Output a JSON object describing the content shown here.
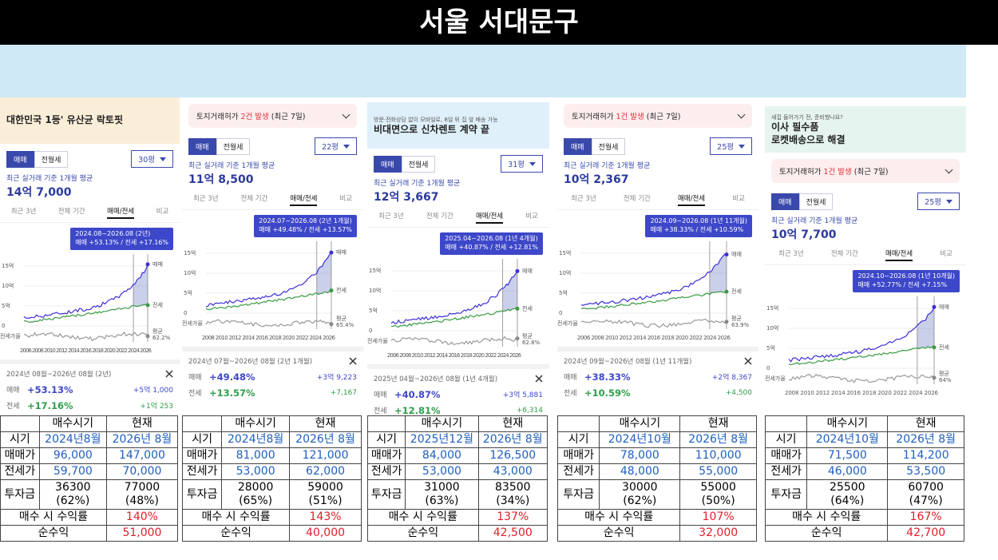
{
  "header": {
    "title": "서울 서대문구"
  },
  "panels": [
    {
      "ad": {
        "title": [
          "대한민국 1등' 유산균 락토핏"
        ]
      },
      "deal_tabs": [
        "매매",
        "전월세"
      ],
      "size": "30평",
      "avg_label": "최근 실거래 기준 1개월 평균",
      "avg_price": "14억 7,000",
      "period_tabs": [
        "최근 3년",
        "전체 기간",
        "매매/전세",
        "비교"
      ],
      "tooltip": [
        "2024.08~2026.08 (2년)",
        "매매 +53.13%  /  전세 +17.16%"
      ],
      "chart": {
        "y_labels": [
          "15억",
          "10억",
          "5억",
          "0"
        ],
        "ratio_axis": "전세가율",
        "x_labels": "2006 2008 2010 2012 2014 2016 2018 2020 2022 2024 2026",
        "line_labels": [
          "매매",
          "전세"
        ],
        "ratio_label": [
          "평균",
          "62.2%"
        ]
      },
      "summary": {
        "period": "2024년 08월~2026년 08월 (2년)",
        "rows": [
          {
            "label": "매매",
            "change": "+53.13%",
            "amount": "+5억 1,000"
          },
          {
            "label": "전세",
            "change": "+17.16%",
            "amount": "+1억 253"
          }
        ]
      },
      "table": {
        "columns": [
          "매수시기",
          "현재"
        ],
        "rows": [
          {
            "label": "시기",
            "values": [
              "2024년8월",
              "2026년 8월"
            ]
          },
          {
            "label": "매매가",
            "values": [
              "96,000",
              "147,000"
            ]
          },
          {
            "label": "전세가",
            "values": [
              "59,700",
              "70,000"
            ]
          },
          {
            "label": "투자금",
            "values": [
              [
                "36300",
                "(62%)"
              ],
              [
                "77000",
                "(48%)"
              ]
            ]
          }
        ],
        "return_label": "매수 시 수익률",
        "return": "140%",
        "net_label": "순수익",
        "net": "51,000"
      }
    },
    {
      "alert": {
        "pre": "토지거래허가",
        "highlight": "2건 발생",
        "post": "(최근 7일)"
      },
      "deal_tabs": [
        "매매",
        "전월세"
      ],
      "size": "22평",
      "avg_label": "최근 실거래 기준 1개월 평균",
      "avg_price": "11억 8,500",
      "period_tabs": [
        "최근 3년",
        "전체 기간",
        "매매/전세",
        "비교"
      ],
      "tooltip": [
        "2024.07~2026.08 (2년 1개월)",
        "매매 +49.48%  /  전세 +13.57%"
      ],
      "chart": {
        "y_labels": [
          "15억",
          "10억",
          "5억",
          "0"
        ],
        "ratio_axis": "전세가율",
        "x_labels": "2008 2010 2012 2014 2016 2018 2020 2022 2024 2026",
        "line_labels": [
          "매매",
          "전세"
        ],
        "ratio_label": [
          "평균",
          "65.4%"
        ]
      },
      "summary": {
        "period": "2024년 07월~2026년 08월 (2년 1개월)",
        "rows": [
          {
            "label": "매매",
            "change": "+49.48%",
            "amount": "+3억 9,223"
          },
          {
            "label": "전세",
            "change": "+13.57%",
            "amount": "+7,167"
          }
        ]
      },
      "table": {
        "columns": [
          "매수시기",
          "현재"
        ],
        "rows": [
          {
            "label": "시기",
            "values": [
              "2024년8월",
              "2026년 8월"
            ]
          },
          {
            "label": "매매가",
            "values": [
              "81,000",
              "121,000"
            ]
          },
          {
            "label": "전세가",
            "values": [
              "53,000",
              "62,000"
            ]
          },
          {
            "label": "투자금",
            "values": [
              [
                "28000",
                "(65%)"
              ],
              [
                "59000",
                "(51%)"
              ]
            ]
          }
        ],
        "return_label": "매수 시 수익률",
        "return": "143%",
        "net_label": "순수익",
        "net": "40,000"
      }
    },
    {
      "ad": {
        "title": [
          "비대면으로 신차렌트 계약 끝"
        ],
        "note": "방문·전화상담 없이 모바일로, 8일 뒤 집 앞 배송 가능"
      },
      "deal_tabs": [
        "매매",
        "전월세"
      ],
      "size": "31평",
      "avg_label": "최근 실거래 기준 1개월 평균",
      "avg_price": "12억 3,667",
      "period_tabs": [
        "최근 3년",
        "전체 기간",
        "매매/전세",
        "비교"
      ],
      "tooltip": [
        "2025.04~2026.08 (1년 4개월)",
        "매매 +40.87%  /  전세 +12.81%"
      ],
      "chart": {
        "y_labels": [
          "15억",
          "10억",
          "5억",
          "0"
        ],
        "ratio_axis": "전세가율",
        "x_labels": "2006 2008 2010 2012 2014 2016 2018 2020 2022 2024 2026",
        "line_labels": [
          "매매",
          "전세"
        ],
        "ratio_label": [
          "평균",
          "62.8%"
        ]
      },
      "summary": {
        "period": "2025년 04월~2026년 08월 (1년 4개월)",
        "rows": [
          {
            "label": "매매",
            "change": "+40.87%",
            "amount": "+3억 5,881"
          },
          {
            "label": "전세",
            "change": "+12.81%",
            "amount": "+6,314"
          }
        ]
      },
      "table": {
        "columns": [
          "매수시기",
          "현재"
        ],
        "rows": [
          {
            "label": "시기",
            "values": [
              "2025년12월",
              "2026년 8월"
            ]
          },
          {
            "label": "매매가",
            "values": [
              "84,000",
              "126,500"
            ]
          },
          {
            "label": "전세가",
            "values": [
              "53,000",
              "43,000"
            ]
          },
          {
            "label": "투자금",
            "values": [
              [
                "31000",
                "(63%)"
              ],
              [
                "83500",
                "(34%)"
              ]
            ]
          }
        ],
        "return_label": "매수 시 수익률",
        "return": "137%",
        "net_label": "순수익",
        "net": "42,500"
      }
    },
    {
      "alert": {
        "pre": "토지거래허가",
        "highlight": "1건 발생",
        "post": "(최근 7일)"
      },
      "deal_tabs": [
        "매매",
        "전월세"
      ],
      "size": "25평",
      "avg_label": "최근 실거래 기준 1개월 평균",
      "avg_price": "10억 2,367",
      "period_tabs": [
        "최근 3년",
        "전체 기간",
        "매매/전세",
        "비교"
      ],
      "tooltip": [
        "2024.09~2026.08 (1년 11개월)",
        "매매 +38.33%  /  전세 +10.59%"
      ],
      "chart": {
        "y_labels": [
          "15억",
          "10억",
          "5억",
          "0"
        ],
        "ratio_axis": "전세가율",
        "x_labels": "2006 2008 2010 2012 2014 2016 2018 2020 2022 2024 2026",
        "line_labels": [
          "매매",
          "전세"
        ],
        "ratio_label": [
          "평균",
          "63.9%"
        ]
      },
      "summary": {
        "period": "2024년 09월~2026년 08월 (1년 11개월)",
        "rows": [
          {
            "label": "매매",
            "change": "+38.33%",
            "amount": "+2억 8,367"
          },
          {
            "label": "전세",
            "change": "+10.59%",
            "amount": "+4,500"
          }
        ]
      },
      "table": {
        "columns": [
          "매수시기",
          "현재"
        ],
        "rows": [
          {
            "label": "시기",
            "values": [
              "2024년10월",
              "2026년 8월"
            ]
          },
          {
            "label": "매매가",
            "values": [
              "78,000",
              "110,000"
            ]
          },
          {
            "label": "전세가",
            "values": [
              "48,000",
              "55,000"
            ]
          },
          {
            "label": "투자금",
            "values": [
              [
                "30000",
                "(62%)"
              ],
              [
                "55000",
                "(50%)"
              ]
            ]
          }
        ],
        "return_label": "매수 시 수익률",
        "return": "107%",
        "net_label": "순수익",
        "net": "32,000"
      }
    },
    {
      "ad": {
        "title": [
          "이사 필수품",
          "로켓배송으로 해결"
        ],
        "note": "새집 들어가기 전, 준비했나요?"
      },
      "alert": {
        "pre": "토지거래허가",
        "highlight": "1건 발생",
        "post": "(최근 7일)"
      },
      "deal_tabs": [
        "매매",
        "전월세"
      ],
      "size": "25평",
      "avg_label": "최근 실거래 기준 1개월 평균",
      "avg_price": "10억 7,700",
      "period_tabs": [
        "최근 3년",
        "전체 기간",
        "매매/전세",
        "비교"
      ],
      "tooltip": [
        "2024.10~2026.08 (1년 10개월)",
        "매매 +52.77%  /  전세 +7.15%"
      ],
      "chart": {
        "y_labels": [
          "15억",
          "10억",
          "5억",
          "0"
        ],
        "ratio_axis": "전세가율",
        "x_labels": "2008 2010 2012 2014 2016 2018 2020 2022 2024 2026",
        "line_labels": [
          "매매",
          "전세"
        ],
        "ratio_label": [
          "평균",
          "64%"
        ]
      },
      "table": {
        "columns": [
          "매수시기",
          "현재"
        ],
        "rows": [
          {
            "label": "시기",
            "values": [
              "2024년10월",
              "2026년 8월"
            ]
          },
          {
            "label": "매매가",
            "values": [
              "71,500",
              "114,200"
            ]
          },
          {
            "label": "전세가",
            "values": [
              "46,000",
              "53,500"
            ]
          },
          {
            "label": "투자금",
            "values": [
              [
                "25500",
                "(64%)"
              ],
              [
                "60700",
                "(47%)"
              ]
            ]
          }
        ],
        "return_label": "매수 시 수익률",
        "return": "167%",
        "net_label": "순수익",
        "net": "42,700"
      }
    }
  ]
}
